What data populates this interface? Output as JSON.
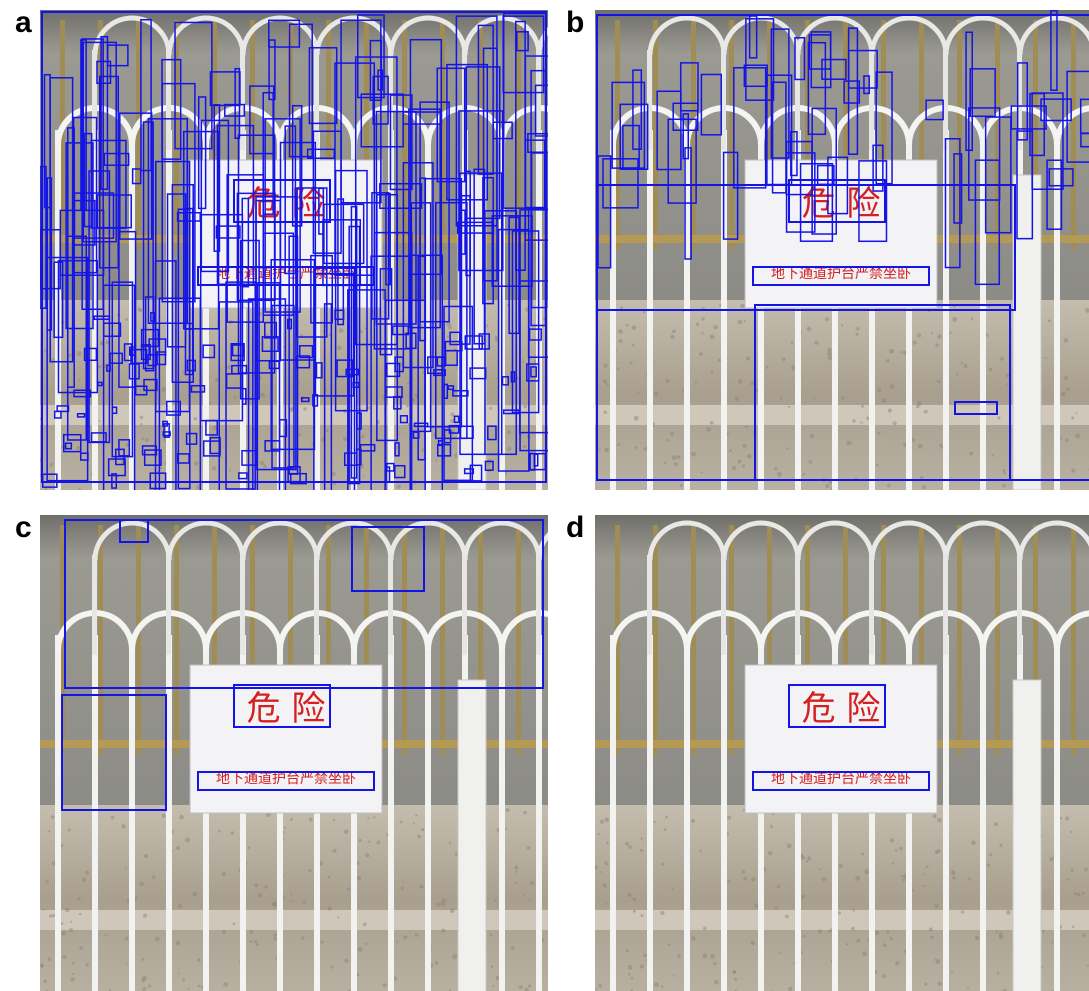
{
  "panels": [
    {
      "label": "a"
    },
    {
      "label": "b"
    },
    {
      "label": "c"
    },
    {
      "label": "d"
    }
  ],
  "sign": {
    "title": "危 险",
    "subtitle": "地下通道护台严禁坐卧"
  }
}
